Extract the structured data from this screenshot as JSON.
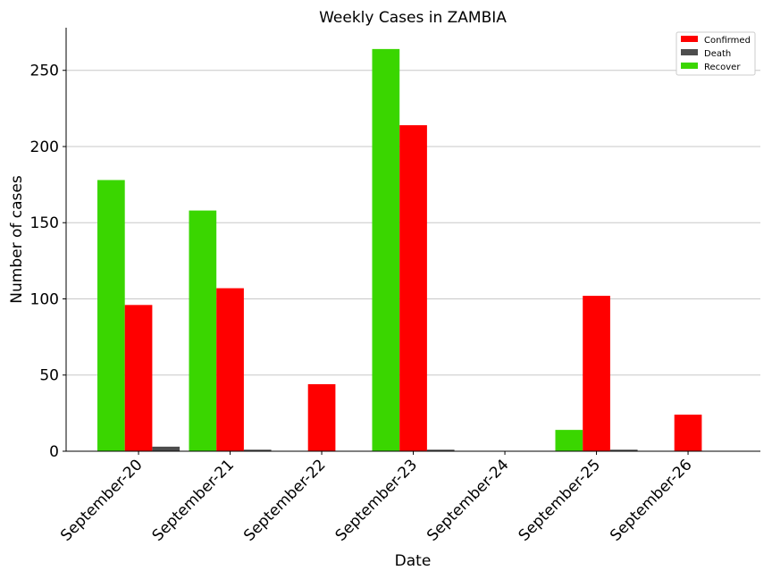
{
  "chart_data": {
    "type": "bar",
    "title": "Weekly Cases in ZAMBIA",
    "xlabel": "Date",
    "ylabel": "Number of cases",
    "categories": [
      "September-20",
      "September-21",
      "September-22",
      "September-23",
      "September-24",
      "September-25",
      "September-26"
    ],
    "series": [
      {
        "name": "Recover",
        "color": "#3ad600",
        "values": [
          178,
          158,
          0,
          264,
          0,
          14,
          0
        ]
      },
      {
        "name": "Confirmed",
        "color": "#ff0000",
        "values": [
          96,
          107,
          44,
          214,
          0,
          102,
          24
        ]
      },
      {
        "name": "Death",
        "color": "#4d4d4d",
        "values": [
          3,
          1,
          0,
          1,
          0,
          1,
          0
        ]
      }
    ],
    "legend_order": [
      "Confirmed",
      "Death",
      "Recover"
    ],
    "yticks": [
      0,
      50,
      100,
      150,
      200,
      250
    ],
    "ylim": [
      0,
      278
    ],
    "grid": "horizontal",
    "legend_position": "top-right"
  }
}
